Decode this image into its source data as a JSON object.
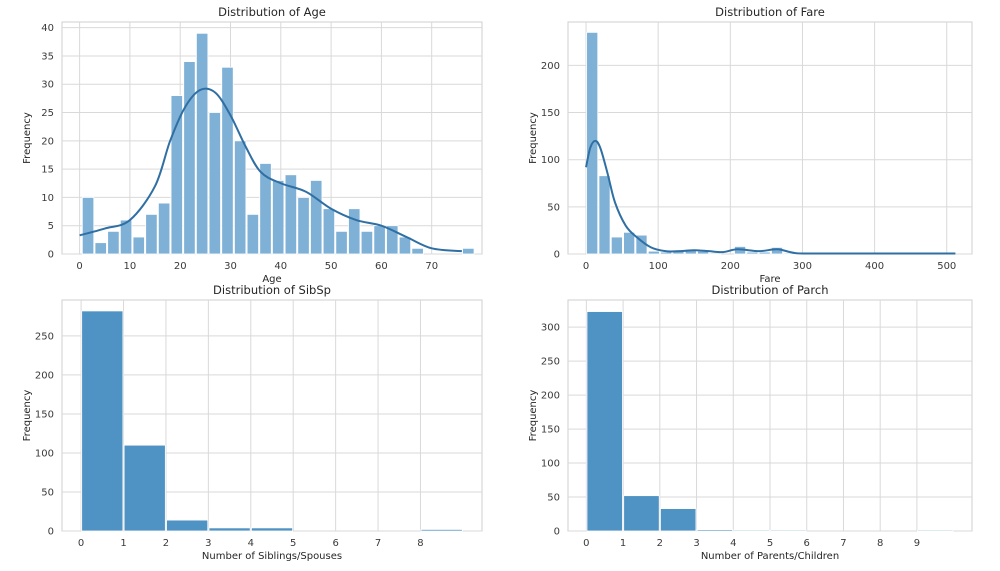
{
  "chart_data": [
    {
      "id": "age",
      "type": "bar",
      "subtype": "histogram_with_kde",
      "title": "Distribution of Age",
      "xlabel": "Age",
      "ylabel": "Frequency",
      "xlim": [
        -3.5,
        80
      ],
      "ylim": [
        0,
        41
      ],
      "xticks": [
        0,
        10,
        20,
        30,
        40,
        50,
        60,
        70
      ],
      "yticks": [
        0,
        5,
        10,
        15,
        20,
        25,
        30,
        35,
        40
      ],
      "bin_start": 0.42,
      "bin_width": 2.52,
      "values": [
        10,
        2,
        4,
        6,
        3,
        7,
        9,
        28,
        34,
        39,
        25,
        33,
        20,
        7,
        16,
        13,
        14,
        10,
        13,
        8,
        4,
        8,
        4,
        5,
        5,
        3,
        1,
        0,
        0,
        0,
        1
      ],
      "kde": {
        "x": [
          0,
          5,
          10,
          15,
          18,
          21,
          24,
          27,
          30,
          33,
          36,
          40,
          45,
          50,
          55,
          60,
          65,
          70,
          76
        ],
        "y": [
          3.3,
          4.5,
          6,
          12,
          20,
          26,
          29,
          28.5,
          24.5,
          19,
          14.5,
          12.5,
          11,
          8,
          6,
          5,
          3,
          1,
          0.5
        ]
      },
      "bar_color": "#7fb0d6",
      "line_color": "#2f6fa3",
      "grid": true,
      "legend": "none"
    },
    {
      "id": "fare",
      "type": "bar",
      "subtype": "histogram_with_kde",
      "title": "Distribution of Fare",
      "xlabel": "Fare",
      "ylabel": "Frequency",
      "xlim": [
        -25,
        535
      ],
      "ylim": [
        0,
        246
      ],
      "xticks": [
        0,
        100,
        200,
        300,
        400,
        500
      ],
      "yticks": [
        0,
        50,
        100,
        150,
        200
      ],
      "bin_start": 0,
      "bin_width": 17.08,
      "values": [
        235,
        83,
        18,
        23,
        20,
        3,
        2,
        4,
        5,
        3,
        1,
        0,
        8,
        2,
        2,
        7,
        1,
        0,
        0,
        0,
        0,
        0,
        0,
        0,
        0,
        0,
        0,
        0,
        0,
        1
      ],
      "kde": {
        "x": [
          0,
          6,
          13,
          20,
          30,
          40,
          55,
          70,
          90,
          110,
          130,
          150,
          170,
          190,
          210,
          240,
          265,
          290,
          320,
          400,
          512
        ],
        "y": [
          92,
          113,
          120,
          112,
          85,
          55,
          30,
          18,
          7,
          3,
          3,
          4,
          3,
          2,
          5,
          3,
          5,
          1,
          0.5,
          0.5,
          0.5
        ]
      },
      "bar_color": "#7fb0d6",
      "line_color": "#2f6fa3",
      "grid": true,
      "legend": "none"
    },
    {
      "id": "sibsp",
      "type": "bar",
      "subtype": "histogram",
      "title": "Distribution of SibSp",
      "xlabel": "Number of Siblings/Spouses",
      "ylabel": "Frequency",
      "xlim": [
        -0.45,
        9.45
      ],
      "ylim": [
        0,
        296
      ],
      "xticks": [
        0,
        1,
        2,
        3,
        4,
        5,
        6,
        7,
        8
      ],
      "yticks": [
        0,
        50,
        100,
        150,
        200,
        250
      ],
      "bin_start": 0,
      "bin_width": 1,
      "values": [
        282,
        110,
        14,
        4,
        4,
        0,
        0,
        0,
        2
      ],
      "bar_color": "#4f93c4",
      "grid": true,
      "legend": "none"
    },
    {
      "id": "parch",
      "type": "bar",
      "subtype": "histogram",
      "title": "Distribution of Parch",
      "xlabel": "Number of Parents/Children",
      "ylabel": "Frequency",
      "xlim": [
        -0.5,
        10.5
      ],
      "ylim": [
        0,
        340
      ],
      "xticks": [
        0,
        1,
        2,
        3,
        4,
        5,
        6,
        7,
        8,
        9
      ],
      "yticks": [
        0,
        50,
        100,
        150,
        200,
        250,
        300
      ],
      "bin_start": 0,
      "bin_width": 1,
      "values": [
        323,
        52,
        33,
        2,
        1,
        1,
        0,
        0,
        0,
        1
      ],
      "bar_color": "#4f93c4",
      "grid": true,
      "legend": "none"
    }
  ]
}
